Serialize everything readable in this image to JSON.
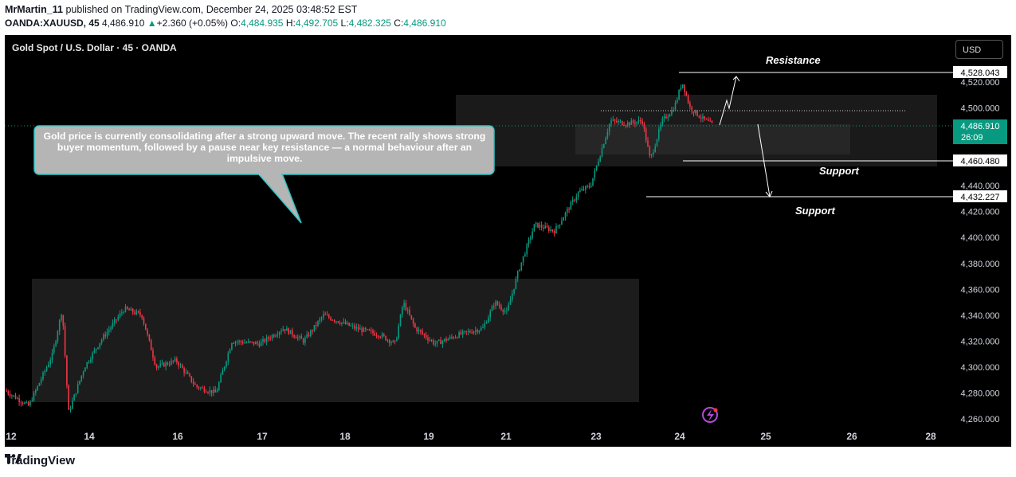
{
  "header": {
    "author": "MrMartin_11",
    "published": "published on TradingView.com, December 24, 2025 03:48:52 EST",
    "symbol_line": "OANDA:XAUUSD, 45",
    "last": "4,486.910",
    "change_arrow": "▲",
    "change": "+2.360 (+0.05%)",
    "o_label": "O:",
    "o": "4,484.935",
    "h_label": "H:",
    "h": "4,492.705",
    "l_label": "L:",
    "l": "4,482.325",
    "c_label": "C:",
    "c": "4,486.910"
  },
  "chart": {
    "symbol_title": "Gold Spot / U.S. Dollar · 45 · OANDA",
    "currency_button": "USD",
    "annotation": "Gold price is currently consolidating after a strong upward move. The recent rally shows strong buyer momentum, followed by a pause near key resistance — a normal behaviour after an impulsive move.",
    "labels": {
      "resistance": "Resistance",
      "support1": "Support",
      "support2": "Support"
    },
    "price_tags": {
      "r": "4,528.043",
      "s1": "4,460.480",
      "s2": "4,432.227",
      "current": "4,486.910",
      "countdown": "26:09"
    }
  },
  "footer": {
    "brand": "TradingView"
  },
  "colors": {
    "up": "#089981",
    "down": "#f23645",
    "bg": "#000000",
    "axis_text": "#d1d4dc"
  },
  "chart_data": {
    "type": "candlestick",
    "title": "Gold Spot / U.S. Dollar · 45 · OANDA",
    "x_ticks": [
      "12",
      "14",
      "16",
      "17",
      "18",
      "19",
      "21",
      "23",
      "24",
      "25",
      "26",
      "28"
    ],
    "y_ticks": [
      "4,520.000",
      "4,500.000",
      "4,480.000",
      "4,460.000",
      "4,440.000",
      "4,420.000",
      "4,400.000",
      "4,380.000",
      "4,360.000",
      "4,340.000",
      "4,320.000",
      "4,300.000",
      "4,280.000",
      "4,260.000"
    ],
    "ylim": [
      4252,
      4540
    ],
    "levels": [
      {
        "name": "Resistance",
        "price": 4528.043
      },
      {
        "name": "Support",
        "price": 4460.48
      },
      {
        "name": "Support",
        "price": 4432.227
      },
      {
        "name": "current",
        "price": 4486.91
      }
    ],
    "path": [
      [
        0,
        4282
      ],
      [
        30,
        4270
      ],
      [
        60,
        4310
      ],
      [
        72,
        4345
      ],
      [
        80,
        4265
      ],
      [
        100,
        4300
      ],
      [
        120,
        4320
      ],
      [
        150,
        4345
      ],
      [
        172,
        4340
      ],
      [
        190,
        4300
      ],
      [
        215,
        4305
      ],
      [
        240,
        4285
      ],
      [
        265,
        4280
      ],
      [
        285,
        4320
      ],
      [
        320,
        4318
      ],
      [
        350,
        4330
      ],
      [
        375,
        4320
      ],
      [
        400,
        4340
      ],
      [
        440,
        4330
      ],
      [
        470,
        4325
      ],
      [
        490,
        4318
      ],
      [
        500,
        4350
      ],
      [
        515,
        4330
      ],
      [
        540,
        4318
      ],
      [
        570,
        4325
      ],
      [
        600,
        4330
      ],
      [
        615,
        4350
      ],
      [
        630,
        4342
      ],
      [
        645,
        4375
      ],
      [
        665,
        4410
      ],
      [
        690,
        4405
      ],
      [
        705,
        4420
      ],
      [
        720,
        4435
      ],
      [
        735,
        4440
      ],
      [
        760,
        4490
      ],
      [
        780,
        4488
      ],
      [
        800,
        4490
      ],
      [
        810,
        4460
      ],
      [
        825,
        4490
      ],
      [
        840,
        4500
      ],
      [
        850,
        4520
      ],
      [
        860,
        4500
      ],
      [
        875,
        4492
      ],
      [
        888,
        4487
      ]
    ]
  }
}
